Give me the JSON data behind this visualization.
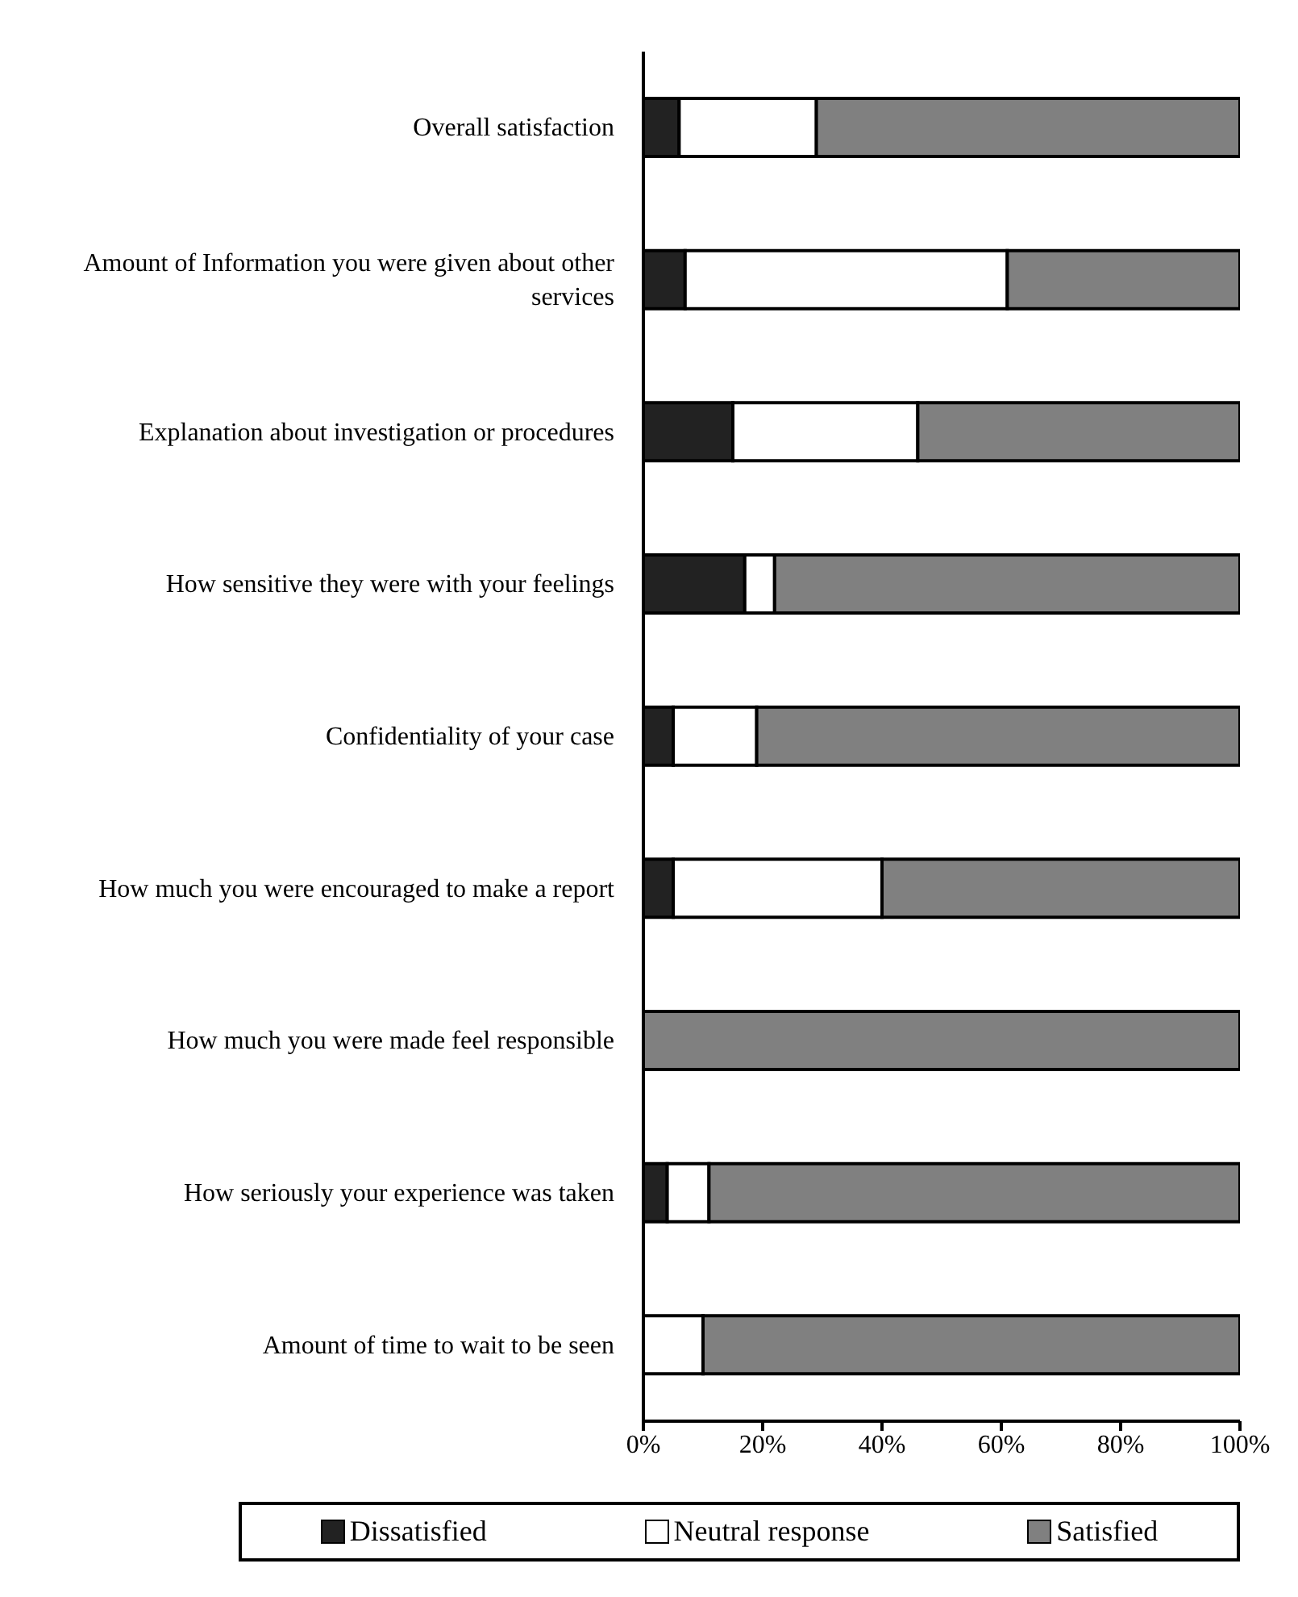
{
  "chart_data": {
    "type": "bar",
    "orientation": "horizontal",
    "stacked": true,
    "categories": [
      "Overall satisfaction",
      "Amount of Information you were given about other services",
      "Explanation about investigation or procedures",
      "How sensitive they were with your feelings",
      "Confidentiality of your case",
      "How much you were encouraged to make a report",
      "How much you were made feel responsible",
      "How seriously your experience was taken",
      "Amount of time to wait to be seen"
    ],
    "series": [
      {
        "name": "Dissatisfied",
        "color": "#222222",
        "values": [
          6,
          7,
          15,
          17,
          5,
          5,
          0,
          4,
          0
        ]
      },
      {
        "name": "Neutral response",
        "color": "#ffffff",
        "values": [
          23,
          54,
          31,
          5,
          14,
          35,
          0,
          7,
          10
        ]
      },
      {
        "name": "Satisfied",
        "color": "#808080",
        "values": [
          71,
          39,
          54,
          78,
          81,
          60,
          100,
          89,
          90
        ]
      }
    ],
    "xlim": [
      0,
      100
    ],
    "xticks": [
      {
        "value": 0,
        "label": "0%"
      },
      {
        "value": 20,
        "label": "20%"
      },
      {
        "value": 40,
        "label": "40%"
      },
      {
        "value": 60,
        "label": "60%"
      },
      {
        "value": 80,
        "label": "80%"
      },
      {
        "value": 100,
        "label": "100%"
      }
    ],
    "grid": false,
    "legend": "bottom"
  }
}
